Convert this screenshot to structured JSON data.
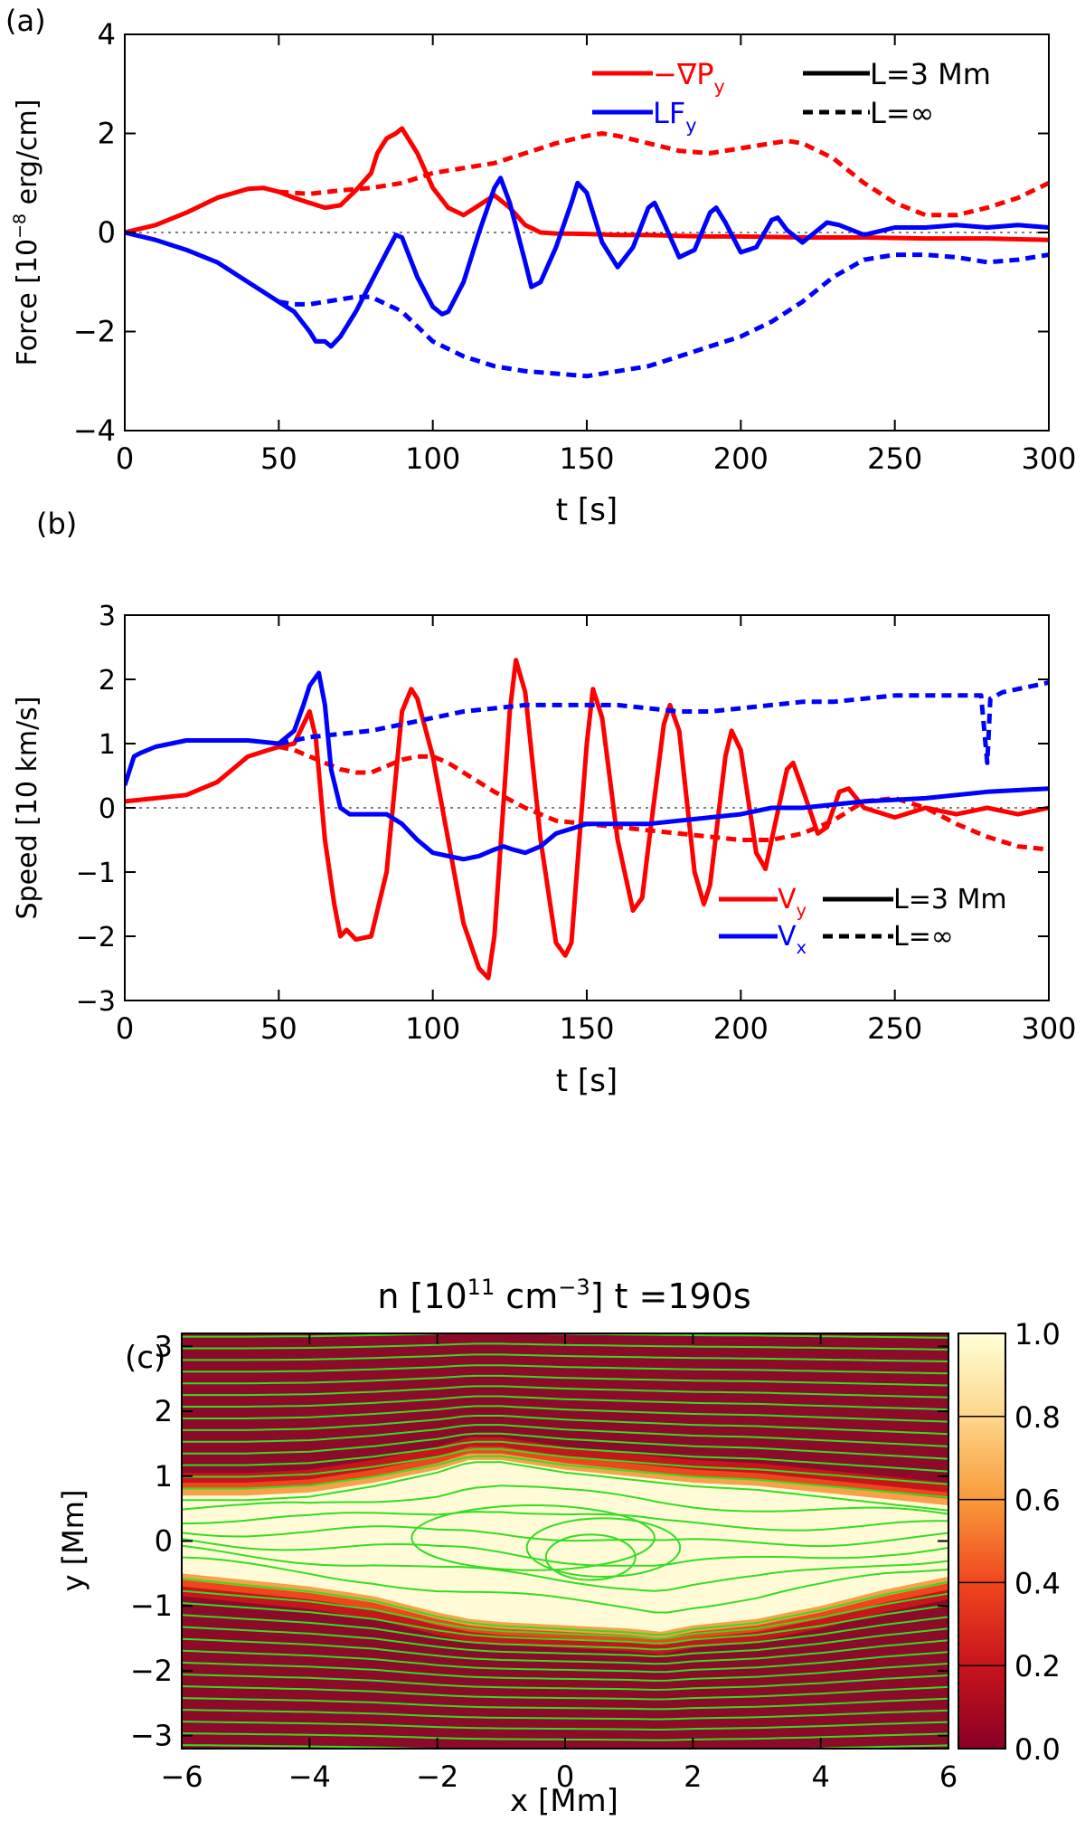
{
  "panel_labels": {
    "a": "(a)",
    "b": "(b)",
    "c": "(c)"
  },
  "colors": {
    "red": "#ff0000",
    "blue": "#0000ff",
    "black": "#000000",
    "green": "#33dd22"
  },
  "chart_data": [
    {
      "id": "a",
      "type": "line",
      "xlabel": "t [s]",
      "ylabel": "Force [10^-8 erg/cm]",
      "xlim": [
        0,
        300
      ],
      "ylim": [
        -4,
        4
      ],
      "xticks": [
        0,
        50,
        100,
        150,
        200,
        250,
        300
      ],
      "yticks": [
        -4,
        -2,
        0,
        2,
        4
      ],
      "legend": {
        "series_labels": [
          "−∇P_y",
          "LF_y"
        ],
        "style_labels": [
          "L=3 Mm",
          "L=∞"
        ]
      },
      "series": [
        {
          "name": "−∇P_y",
          "L": "L=3 Mm",
          "color": "red",
          "dash": false,
          "x": [
            0,
            10,
            20,
            30,
            40,
            45,
            50,
            55,
            60,
            65,
            70,
            75,
            80,
            82,
            85,
            88,
            90,
            95,
            100,
            105,
            110,
            115,
            120,
            125,
            130,
            135,
            140,
            150,
            160,
            170,
            180,
            190,
            200,
            220,
            240,
            260,
            280,
            300
          ],
          "y": [
            0,
            0.15,
            0.4,
            0.7,
            0.88,
            0.9,
            0.82,
            0.7,
            0.6,
            0.5,
            0.55,
            0.85,
            1.2,
            1.6,
            1.9,
            2.0,
            2.1,
            1.6,
            0.9,
            0.5,
            0.35,
            0.55,
            0.75,
            0.5,
            0.15,
            0.0,
            -0.02,
            -0.03,
            -0.05,
            -0.05,
            -0.07,
            -0.08,
            -0.08,
            -0.1,
            -0.1,
            -0.12,
            -0.12,
            -0.15
          ]
        },
        {
          "name": "−∇P_y",
          "L": "L=∞",
          "color": "red",
          "dash": true,
          "x": [
            50,
            55,
            60,
            70,
            80,
            90,
            100,
            110,
            120,
            130,
            140,
            150,
            155,
            160,
            170,
            180,
            190,
            200,
            210,
            215,
            220,
            230,
            240,
            250,
            260,
            270,
            280,
            290,
            300
          ],
          "y": [
            0.82,
            0.8,
            0.78,
            0.85,
            0.9,
            1.0,
            1.2,
            1.3,
            1.4,
            1.6,
            1.8,
            1.95,
            2.0,
            1.95,
            1.8,
            1.65,
            1.6,
            1.7,
            1.8,
            1.85,
            1.8,
            1.5,
            1.0,
            0.6,
            0.35,
            0.35,
            0.5,
            0.7,
            1.0
          ]
        },
        {
          "name": "LF_y",
          "L": "L=3 Mm",
          "color": "blue",
          "dash": false,
          "x": [
            0,
            10,
            20,
            30,
            40,
            50,
            55,
            60,
            62,
            65,
            67,
            70,
            75,
            80,
            85,
            88,
            90,
            95,
            100,
            103,
            105,
            110,
            115,
            120,
            122,
            125,
            130,
            132,
            135,
            140,
            145,
            147,
            150,
            155,
            160,
            165,
            170,
            172,
            175,
            180,
            185,
            190,
            192,
            195,
            200,
            205,
            210,
            212,
            215,
            220,
            225,
            228,
            232,
            240,
            250,
            260,
            270,
            280,
            290,
            300
          ],
          "y": [
            0,
            -0.15,
            -0.35,
            -0.6,
            -1.0,
            -1.4,
            -1.6,
            -2.0,
            -2.2,
            -2.2,
            -2.3,
            -2.1,
            -1.6,
            -1.0,
            -0.4,
            -0.05,
            -0.1,
            -0.9,
            -1.5,
            -1.65,
            -1.6,
            -1.0,
            0.0,
            0.9,
            1.1,
            0.6,
            -0.6,
            -1.1,
            -1.0,
            -0.3,
            0.6,
            1.0,
            0.8,
            -0.2,
            -0.7,
            -0.3,
            0.5,
            0.6,
            0.2,
            -0.5,
            -0.35,
            0.4,
            0.5,
            0.2,
            -0.4,
            -0.3,
            0.25,
            0.3,
            0.05,
            -0.2,
            0.05,
            0.2,
            0.15,
            -0.05,
            0.1,
            0.1,
            0.15,
            0.1,
            0.15,
            0.1
          ]
        },
        {
          "name": "LF_y",
          "L": "L=∞",
          "color": "blue",
          "dash": true,
          "x": [
            50,
            55,
            60,
            65,
            70,
            75,
            80,
            90,
            100,
            110,
            120,
            130,
            140,
            150,
            160,
            170,
            180,
            190,
            200,
            210,
            220,
            230,
            240,
            250,
            260,
            270,
            280,
            290,
            300
          ],
          "y": [
            -1.4,
            -1.45,
            -1.45,
            -1.4,
            -1.35,
            -1.3,
            -1.3,
            -1.6,
            -2.2,
            -2.5,
            -2.7,
            -2.8,
            -2.85,
            -2.9,
            -2.8,
            -2.7,
            -2.5,
            -2.3,
            -2.1,
            -1.8,
            -1.4,
            -0.9,
            -0.55,
            -0.45,
            -0.45,
            -0.5,
            -0.6,
            -0.55,
            -0.45
          ]
        }
      ]
    },
    {
      "id": "b",
      "type": "line",
      "xlabel": "t [s]",
      "ylabel": "Speed [10 km/s]",
      "xlim": [
        0,
        300
      ],
      "ylim": [
        -3,
        3
      ],
      "xticks": [
        0,
        50,
        100,
        150,
        200,
        250,
        300
      ],
      "yticks": [
        -3,
        -2,
        -1,
        0,
        1,
        2,
        3
      ],
      "legend": {
        "series_labels": [
          "V_y",
          "V_x"
        ],
        "style_labels": [
          "L=3 Mm",
          "L=∞"
        ]
      },
      "series": [
        {
          "name": "V_y",
          "L": "L=3 Mm",
          "color": "red",
          "dash": false,
          "x": [
            0,
            10,
            20,
            30,
            40,
            50,
            55,
            60,
            62,
            65,
            68,
            70,
            72,
            75,
            80,
            85,
            90,
            93,
            95,
            100,
            105,
            110,
            115,
            118,
            120,
            125,
            127,
            130,
            135,
            140,
            143,
            145,
            150,
            152,
            155,
            160,
            165,
            168,
            170,
            175,
            177,
            180,
            185,
            188,
            190,
            195,
            197,
            200,
            205,
            208,
            210,
            215,
            217,
            220,
            225,
            228,
            232,
            235,
            240,
            250,
            260,
            270,
            280,
            290,
            300
          ],
          "y": [
            0.1,
            0.15,
            0.2,
            0.4,
            0.8,
            0.95,
            1.0,
            1.5,
            1.1,
            -0.5,
            -1.5,
            -2.0,
            -1.9,
            -2.05,
            -2.0,
            -1.0,
            1.5,
            1.85,
            1.7,
            0.8,
            -0.5,
            -1.8,
            -2.5,
            -2.65,
            -2.0,
            1.5,
            2.3,
            1.8,
            -0.5,
            -2.1,
            -2.3,
            -2.1,
            1.0,
            1.85,
            1.4,
            -0.5,
            -1.6,
            -1.4,
            -0.6,
            1.3,
            1.6,
            1.2,
            -1.0,
            -1.5,
            -1.2,
            0.8,
            1.2,
            0.9,
            -0.7,
            -0.95,
            -0.5,
            0.6,
            0.7,
            0.3,
            -0.4,
            -0.3,
            0.25,
            0.3,
            0.0,
            -0.15,
            0.0,
            -0.1,
            0.0,
            -0.1,
            0.0
          ]
        },
        {
          "name": "V_y",
          "L": "L=∞",
          "color": "red",
          "dash": true,
          "x": [
            50,
            55,
            60,
            65,
            70,
            75,
            80,
            90,
            95,
            100,
            105,
            110,
            120,
            130,
            140,
            150,
            160,
            170,
            180,
            190,
            200,
            210,
            220,
            230,
            240,
            250,
            260,
            270,
            280,
            290,
            300
          ],
          "y": [
            0.95,
            0.9,
            0.8,
            0.7,
            0.6,
            0.55,
            0.55,
            0.75,
            0.8,
            0.8,
            0.7,
            0.55,
            0.25,
            0.0,
            -0.2,
            -0.25,
            -0.3,
            -0.35,
            -0.4,
            -0.45,
            -0.5,
            -0.5,
            -0.4,
            -0.2,
            0.1,
            0.15,
            0.0,
            -0.25,
            -0.45,
            -0.6,
            -0.65
          ]
        },
        {
          "name": "V_x",
          "L": "L=3 Mm",
          "color": "blue",
          "dash": false,
          "x": [
            0,
            3,
            5,
            10,
            15,
            20,
            30,
            40,
            50,
            55,
            58,
            60,
            63,
            65,
            67,
            70,
            73,
            78,
            85,
            90,
            95,
            100,
            105,
            110,
            115,
            120,
            123,
            126,
            130,
            135,
            140,
            150,
            160,
            170,
            180,
            190,
            200,
            210,
            220,
            240,
            260,
            280,
            300
          ],
          "y": [
            0.35,
            0.8,
            0.85,
            0.95,
            1.0,
            1.05,
            1.05,
            1.05,
            1.0,
            1.2,
            1.6,
            1.9,
            2.1,
            1.6,
            0.6,
            0.0,
            -0.1,
            -0.1,
            -0.1,
            -0.25,
            -0.5,
            -0.7,
            -0.75,
            -0.8,
            -0.75,
            -0.65,
            -0.6,
            -0.65,
            -0.7,
            -0.6,
            -0.4,
            -0.25,
            -0.25,
            -0.25,
            -0.2,
            -0.15,
            -0.1,
            0.0,
            0.0,
            0.1,
            0.15,
            0.25,
            0.3
          ]
        },
        {
          "name": "V_x",
          "L": "L=∞",
          "color": "blue",
          "dash": true,
          "x": [
            50,
            55,
            60,
            70,
            80,
            90,
            100,
            110,
            120,
            130,
            140,
            150,
            160,
            170,
            180,
            190,
            200,
            210,
            220,
            230,
            240,
            250,
            260,
            270,
            278,
            280,
            281,
            283,
            285,
            290,
            300
          ],
          "y": [
            1.0,
            1.05,
            1.1,
            1.15,
            1.2,
            1.3,
            1.4,
            1.5,
            1.55,
            1.6,
            1.6,
            1.6,
            1.6,
            1.55,
            1.5,
            1.5,
            1.55,
            1.6,
            1.65,
            1.65,
            1.7,
            1.75,
            1.75,
            1.75,
            1.75,
            0.7,
            1.7,
            1.75,
            1.8,
            1.85,
            1.95
          ]
        }
      ]
    },
    {
      "id": "c",
      "type": "heatmap",
      "title": "n [10^11 cm^-3] t =190s",
      "xlabel": "x [Mm]",
      "ylabel": "y [Mm]",
      "xlim": [
        -6,
        6
      ],
      "ylim": [
        -3.2,
        3.2
      ],
      "xticks": [
        -6,
        -4,
        -2,
        0,
        2,
        4,
        6
      ],
      "yticks": [
        -3,
        -2,
        -1,
        0,
        1,
        2,
        3
      ],
      "colorbar": {
        "range": [
          0,
          1
        ],
        "ticks": [
          "0.0",
          "0.2",
          "0.4",
          "0.6",
          "0.8",
          "1.0"
        ]
      },
      "dense_region": {
        "x": [
          -6,
          -5,
          -4,
          -3,
          -2,
          -1.5,
          -1,
          0,
          1,
          1.5,
          2,
          3,
          4,
          5,
          6
        ],
        "top": [
          0.7,
          0.7,
          0.75,
          0.9,
          1.1,
          1.25,
          1.25,
          1.1,
          1.0,
          0.95,
          0.9,
          0.85,
          0.75,
          0.65,
          0.55
        ],
        "bottom": [
          -0.5,
          -0.6,
          -0.7,
          -0.85,
          -1.1,
          -1.2,
          -1.25,
          -1.3,
          -1.35,
          -1.4,
          -1.3,
          -1.2,
          -1.0,
          -0.75,
          -0.55
        ]
      },
      "field_line_count": 36
    }
  ]
}
